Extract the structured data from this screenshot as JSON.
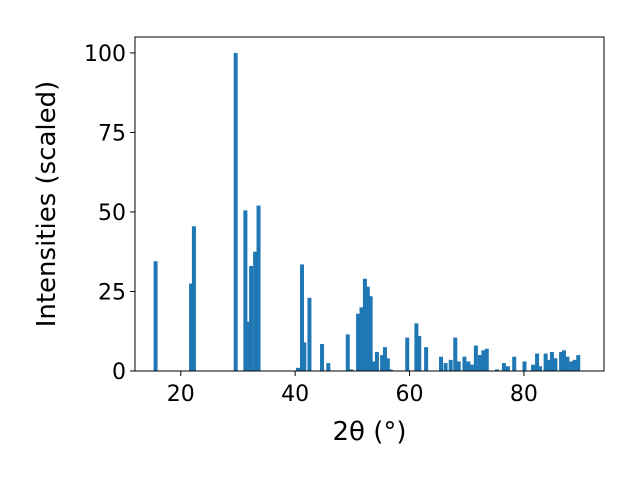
{
  "chart_data": {
    "type": "bar",
    "xlabel": "2θ (°)",
    "ylabel": "Intensities (scaled)",
    "xlim": [
      12,
      94
    ],
    "ylim": [
      0,
      105
    ],
    "xticks": [
      20,
      40,
      60,
      80
    ],
    "yticks": [
      0,
      25,
      50,
      75,
      100
    ],
    "grid": false,
    "bar_color": "#1f77b4",
    "bar_width": 0.7,
    "x": [
      15.6,
      21.8,
      22.3,
      29.6,
      31.3,
      31.7,
      32.3,
      33.0,
      33.6,
      40.5,
      41.2,
      41.6,
      42.5,
      44.7,
      45.8,
      49.2,
      49.8,
      51.0,
      51.6,
      52.2,
      52.7,
      53.2,
      53.7,
      54.3,
      55.2,
      55.7,
      56.2,
      56.7,
      59.6,
      61.2,
      61.7,
      62.9,
      65.5,
      66.3,
      67.2,
      68.0,
      68.6,
      69.6,
      70.3,
      70.9,
      71.6,
      72.3,
      72.9,
      73.5,
      75.3,
      76.5,
      77.2,
      78.3,
      80.1,
      81.6,
      82.3,
      82.8,
      83.8,
      84.4,
      84.9,
      85.5,
      86.5,
      87.0,
      87.6,
      88.3,
      88.9,
      89.5
    ],
    "values": [
      34.5,
      27.5,
      45.5,
      100,
      50.5,
      15.5,
      33,
      37.5,
      52,
      1,
      33.5,
      9,
      23,
      8.5,
      2.5,
      11.5,
      0.5,
      18,
      20,
      29,
      26.5,
      23.5,
      3,
      6,
      5,
      7.5,
      4,
      0.5,
      10.5,
      15,
      11,
      7.5,
      4.5,
      2.5,
      3.5,
      10.5,
      3,
      4.5,
      3,
      2,
      8,
      5,
      6.5,
      7,
      0.5,
      2.5,
      1.5,
      4.5,
      3,
      2,
      5.5,
      1.5,
      5.5,
      3.5,
      6,
      4,
      6,
      6.5,
      4.5,
      3,
      3.5,
      5
    ]
  }
}
